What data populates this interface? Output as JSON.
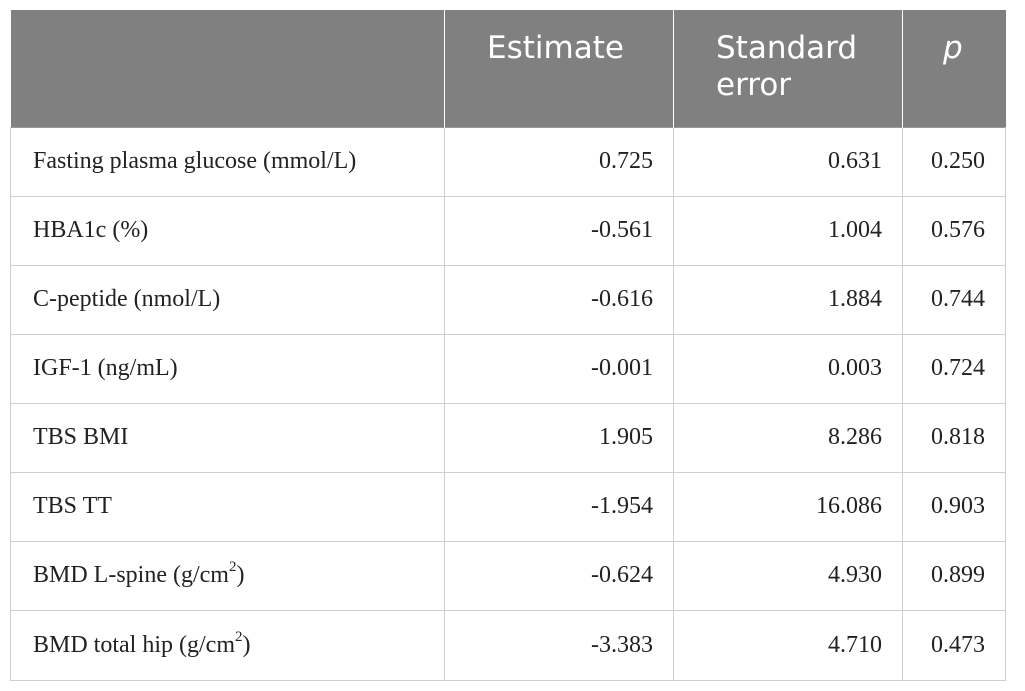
{
  "table": {
    "headers": [
      "",
      "Estimate",
      "Standard error",
      "p"
    ],
    "rows": [
      {
        "label": "Fasting plasma glucose (mmol/L)",
        "label_sup": "",
        "label_suffix": "",
        "estimate": "0.725",
        "se": "0.631",
        "p": "0.250"
      },
      {
        "label": "HBA1c (%)",
        "label_sup": "",
        "label_suffix": "",
        "estimate": "-0.561",
        "se": "1.004",
        "p": "0.576"
      },
      {
        "label": "C-peptide (nmol/L)",
        "label_sup": "",
        "label_suffix": "",
        "estimate": "-0.616",
        "se": "1.884",
        "p": "0.744"
      },
      {
        "label": "IGF-1 (ng/mL)",
        "label_sup": "",
        "label_suffix": "",
        "estimate": "-0.001",
        "se": "0.003",
        "p": "0.724"
      },
      {
        "label": "TBS BMI",
        "label_sup": "",
        "label_suffix": "",
        "estimate": "1.905",
        "se": "8.286",
        "p": "0.818"
      },
      {
        "label": "TBS TT",
        "label_sup": "",
        "label_suffix": "",
        "estimate": "-1.954",
        "se": "16.086",
        "p": "0.903"
      },
      {
        "label": "BMD L-spine (g/cm",
        "label_sup": "2",
        "label_suffix": ")",
        "estimate": "-0.624",
        "se": "4.930",
        "p": "0.899"
      },
      {
        "label": "BMD total hip (g/cm",
        "label_sup": "2",
        "label_suffix": ")",
        "estimate": "-3.383",
        "se": "4.710",
        "p": "0.473"
      }
    ]
  },
  "colors": {
    "header_bg": "#808080",
    "header_text": "#ffffff",
    "border": "#cfcfcf"
  }
}
